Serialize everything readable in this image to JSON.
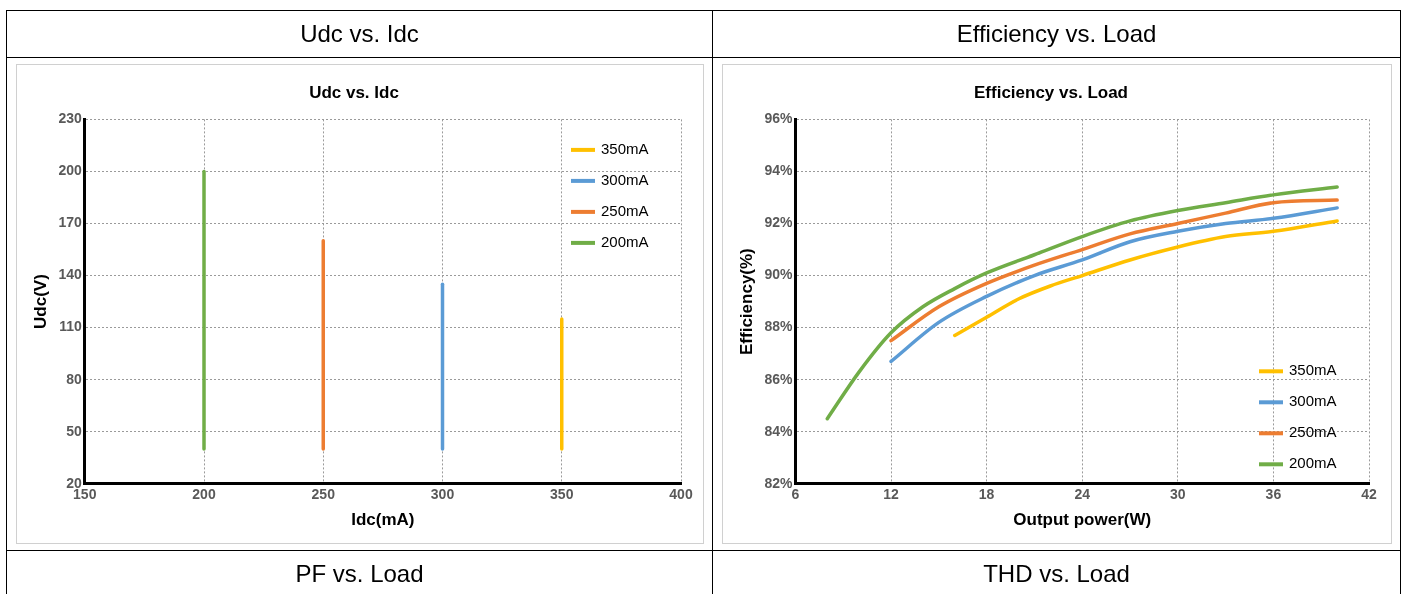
{
  "chart_data": [
    {
      "type": "line",
      "title": "Udc vs. Idc",
      "subtitle": "Udc vs. Idc",
      "xlabel": "Idc(mA)",
      "ylabel": "Udc(V)",
      "marker": "none",
      "line_style": "solid",
      "grid": true,
      "legend": "top right",
      "xlim": [
        150,
        400
      ],
      "xticks": [
        150,
        200,
        250,
        300,
        350,
        400
      ],
      "ylim": [
        20,
        230
      ],
      "yticks": [
        20,
        50,
        80,
        110,
        140,
        170,
        200,
        230
      ],
      "series": [
        {
          "name": "350mA",
          "color": "#ffc000",
          "x": [
            350,
            350
          ],
          "values": [
            40,
            115
          ]
        },
        {
          "name": "300mA",
          "color": "#5b9bd5",
          "x": [
            300,
            300
          ],
          "values": [
            40,
            135
          ]
        },
        {
          "name": "250mA",
          "color": "#ed7d31",
          "x": [
            250,
            250
          ],
          "values": [
            40,
            160
          ]
        },
        {
          "name": "200mA",
          "color": "#70ad47",
          "x": [
            200,
            200
          ],
          "values": [
            40,
            200
          ]
        }
      ]
    },
    {
      "type": "line",
      "title": "Efficiency vs. Load",
      "subtitle": "Efficiency vs. Load",
      "xlabel": "Output power(W)",
      "ylabel": "Efficiency(%)",
      "marker": "none",
      "line_style": "solid",
      "grid": true,
      "legend": "bottom right",
      "xlim": [
        6,
        42
      ],
      "xticks": [
        6,
        12,
        18,
        24,
        30,
        36,
        42
      ],
      "ylim": [
        82,
        96
      ],
      "yticks": [
        {
          "value": 82,
          "label": "82%"
        },
        {
          "value": 84,
          "label": "84%"
        },
        {
          "value": 86,
          "label": "86%"
        },
        {
          "value": 88,
          "label": "88%"
        },
        {
          "value": 90,
          "label": "90%"
        },
        {
          "value": 92,
          "label": "92%"
        },
        {
          "value": 94,
          "label": "94%"
        },
        {
          "value": 96,
          "label": "96%"
        }
      ],
      "series": [
        {
          "name": "350mA",
          "color": "#ffc000",
          "x": [
            16,
            18,
            20,
            22,
            24,
            27,
            30,
            33,
            36,
            40
          ],
          "values": [
            87.7,
            88.4,
            89.1,
            89.6,
            90.0,
            90.6,
            91.1,
            91.5,
            91.7,
            92.1
          ]
        },
        {
          "name": "300mA",
          "color": "#5b9bd5",
          "x": [
            12,
            15,
            18,
            21,
            24,
            27,
            30,
            33,
            36,
            40
          ],
          "values": [
            86.7,
            88.2,
            89.2,
            90.0,
            90.6,
            91.3,
            91.7,
            92.0,
            92.2,
            92.6
          ]
        },
        {
          "name": "250mA",
          "color": "#ed7d31",
          "x": [
            12,
            15,
            18,
            21,
            24,
            27,
            30,
            33,
            36,
            40
          ],
          "values": [
            87.5,
            88.8,
            89.7,
            90.4,
            91.0,
            91.6,
            92.0,
            92.4,
            92.8,
            92.9
          ]
        },
        {
          "name": "200mA",
          "color": "#70ad47",
          "x": [
            8,
            10,
            12,
            14,
            16,
            18,
            21,
            24,
            27,
            30,
            33,
            36,
            40
          ],
          "values": [
            84.5,
            86.3,
            87.8,
            88.8,
            89.5,
            90.1,
            90.8,
            91.5,
            92.1,
            92.5,
            92.8,
            93.1,
            93.4
          ]
        }
      ]
    },
    {
      "type": "other",
      "title": "PF vs. Load"
    },
    {
      "type": "other",
      "title": "THD vs. Load"
    }
  ]
}
